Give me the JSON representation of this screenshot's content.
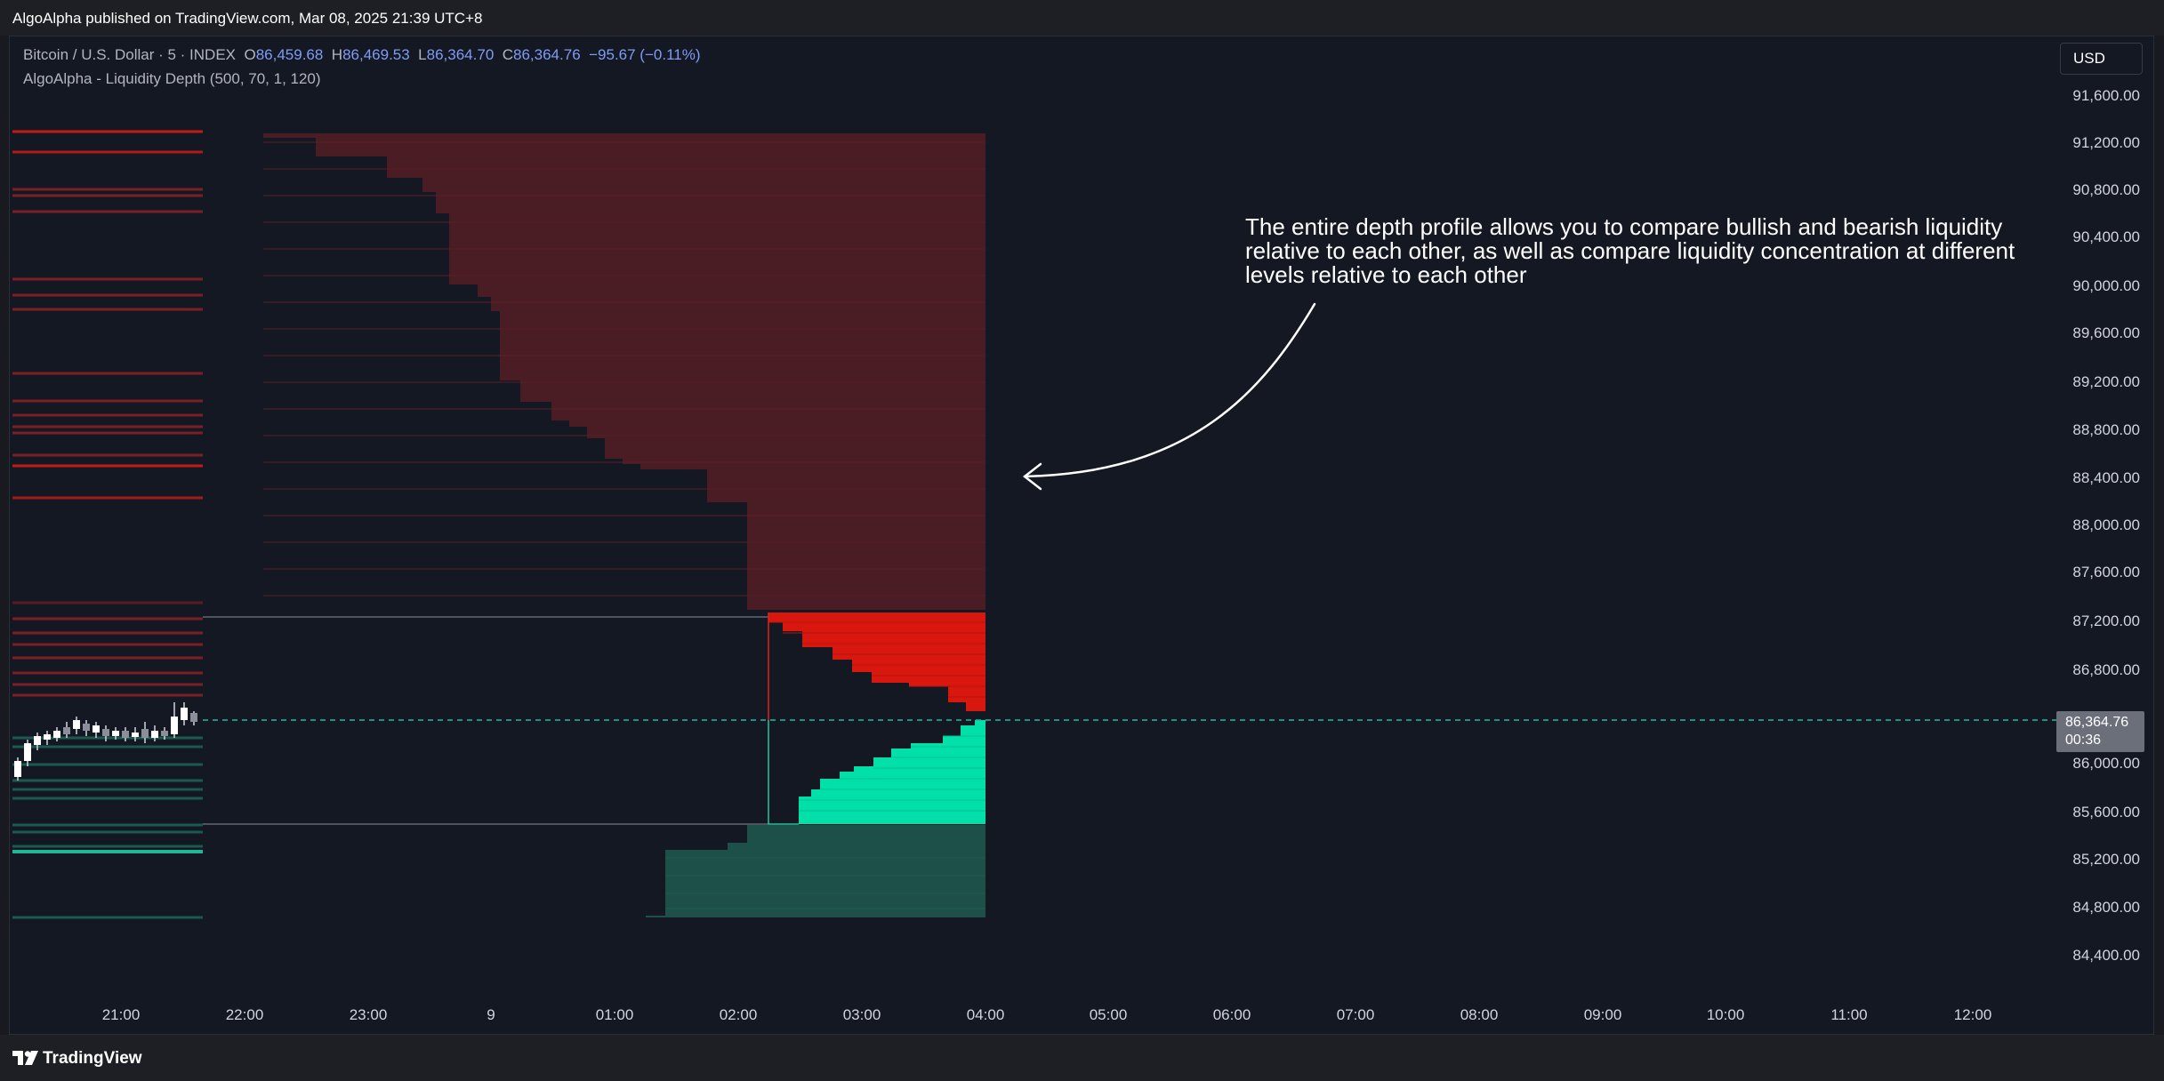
{
  "header": {
    "published_by": "AlgoAlpha published on TradingView.com, Mar 08, 2025 21:39 UTC+8"
  },
  "legend": {
    "symbol": "Bitcoin / U.S. Dollar · 5 · INDEX",
    "open_label": "O",
    "open": "86,459.68",
    "high_label": "H",
    "high": "86,469.53",
    "low_label": "L",
    "low": "86,364.70",
    "close_label": "C",
    "close": "86,364.76",
    "change": "−95.67 (−0.11%)",
    "indicator": "AlgoAlpha - Liquidity Depth (500, 70, 1, 120)"
  },
  "currency_button": "USD",
  "price_axis": [
    "91,600.00",
    "91,200.00",
    "90,800.00",
    "90,400.00",
    "90,000.00",
    "89,600.00",
    "89,200.00",
    "88,800.00",
    "88,400.00",
    "88,000.00",
    "87,600.00",
    "87,200.00",
    "86,800.00",
    "86,000.00",
    "85,600.00",
    "85,200.00",
    "84,800.00",
    "84,400.00"
  ],
  "time_axis": [
    "21:00",
    "22:00",
    "23:00",
    "9",
    "01:00",
    "02:00",
    "03:00",
    "04:00",
    "05:00",
    "06:00",
    "07:00",
    "08:00",
    "09:00",
    "10:00",
    "11:00",
    "12:00"
  ],
  "current_price": {
    "price": "86,364.76",
    "countdown": "00:36"
  },
  "annotation": "The entire depth profile allows you to compare bullish and bearish liquidity relative to each other, as well as compare liquidity concentration at different levels relative to each other",
  "footer": {
    "brand": "TradingView"
  },
  "colors": {
    "background": "#141823",
    "bear_dim": "#4a1c23",
    "bear_bright": "#d8180f",
    "bull_dim": "#1c5048",
    "bull_bright": "#00e0a8",
    "zone_bear_line": "#e0241b",
    "zone_bull_line": "#22c3a0"
  }
}
